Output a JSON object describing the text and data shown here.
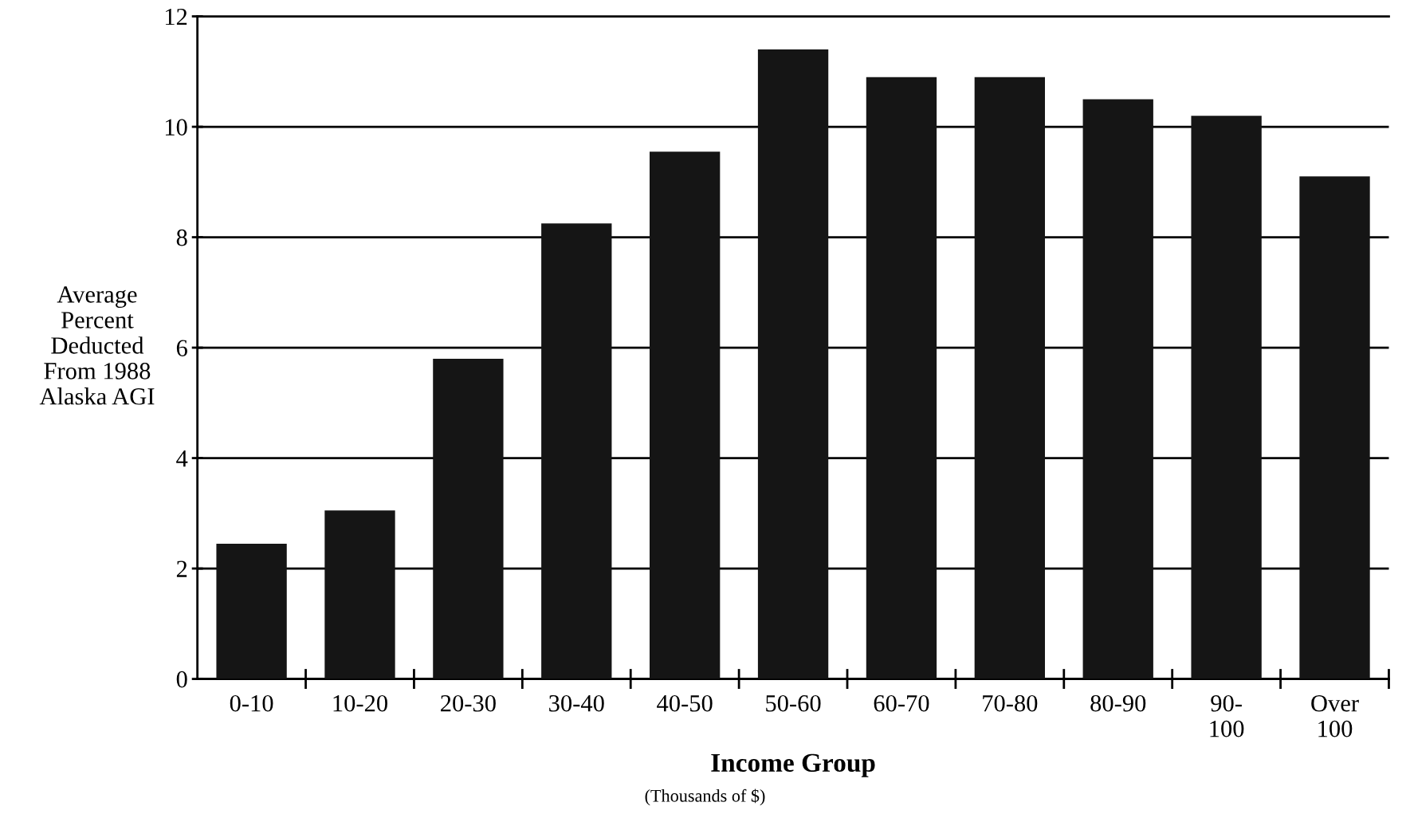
{
  "chart_data": {
    "type": "bar",
    "xlabel": "Income Group",
    "ylabel": "Average\nPercent\nDeducted\nFrom 1988\nAlaska AGI",
    "annotations": [
      "(Thousands of $)"
    ],
    "categories": [
      "0-10",
      "10-20",
      "20-30",
      "30-40",
      "40-50",
      "50-60",
      "60-70",
      "70-80",
      "80-90",
      "90-\n100",
      "Over\n100"
    ],
    "values": [
      2.45,
      3.05,
      5.8,
      8.25,
      9.55,
      11.4,
      10.9,
      10.9,
      10.5,
      10.2,
      9.1
    ],
    "color": "#151515",
    "ylim": [
      0,
      12
    ],
    "yticks": [
      0,
      2,
      4,
      6,
      8,
      10,
      12
    ],
    "grid": "y",
    "legend": false
  }
}
